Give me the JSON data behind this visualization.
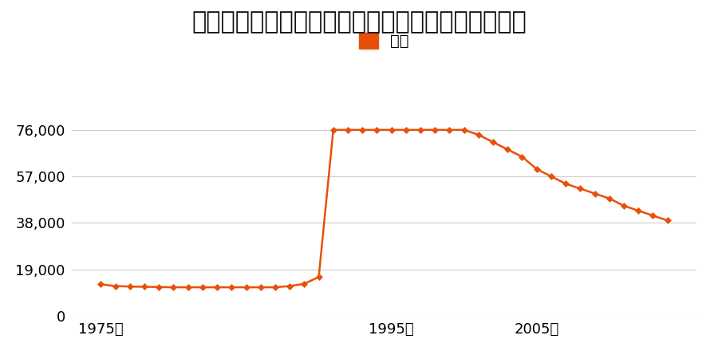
{
  "title": "大分県別府市大字内竈字北尾関５８番１の地価推移",
  "legend_label": "価格",
  "line_color": "#E8500A",
  "marker_color": "#E8500A",
  "background_color": "#ffffff",
  "grid_color": "#cccccc",
  "ylim": [
    0,
    88000
  ],
  "yticks": [
    0,
    19000,
    38000,
    57000,
    76000
  ],
  "xtick_labels": [
    "1975年",
    "1995年",
    "2005年"
  ],
  "xtick_positions": [
    1975,
    1995,
    2005
  ],
  "xlim": [
    1973,
    2016
  ],
  "years": [
    1975,
    1976,
    1977,
    1978,
    1979,
    1980,
    1981,
    1982,
    1983,
    1984,
    1985,
    1986,
    1987,
    1988,
    1989,
    1990,
    1991,
    1992,
    1993,
    1994,
    1995,
    1996,
    1997,
    1998,
    1999,
    2000,
    2001,
    2002,
    2003,
    2004,
    2005,
    2006,
    2007,
    2008,
    2009,
    2010,
    2011,
    2012,
    2013,
    2014
  ],
  "values": [
    12900,
    12200,
    12000,
    11900,
    11800,
    11700,
    11700,
    11700,
    11700,
    11700,
    11700,
    11700,
    11700,
    12200,
    13100,
    15900,
    76000,
    76000,
    76000,
    76000,
    76000,
    76000,
    76000,
    76000,
    76000,
    76000,
    74000,
    71000,
    68000,
    65000,
    60000,
    57000,
    54000,
    52000,
    50000,
    48000,
    45000,
    43000,
    41000,
    39000
  ],
  "title_fontsize": 22,
  "tick_fontsize": 13,
  "legend_fontsize": 14
}
